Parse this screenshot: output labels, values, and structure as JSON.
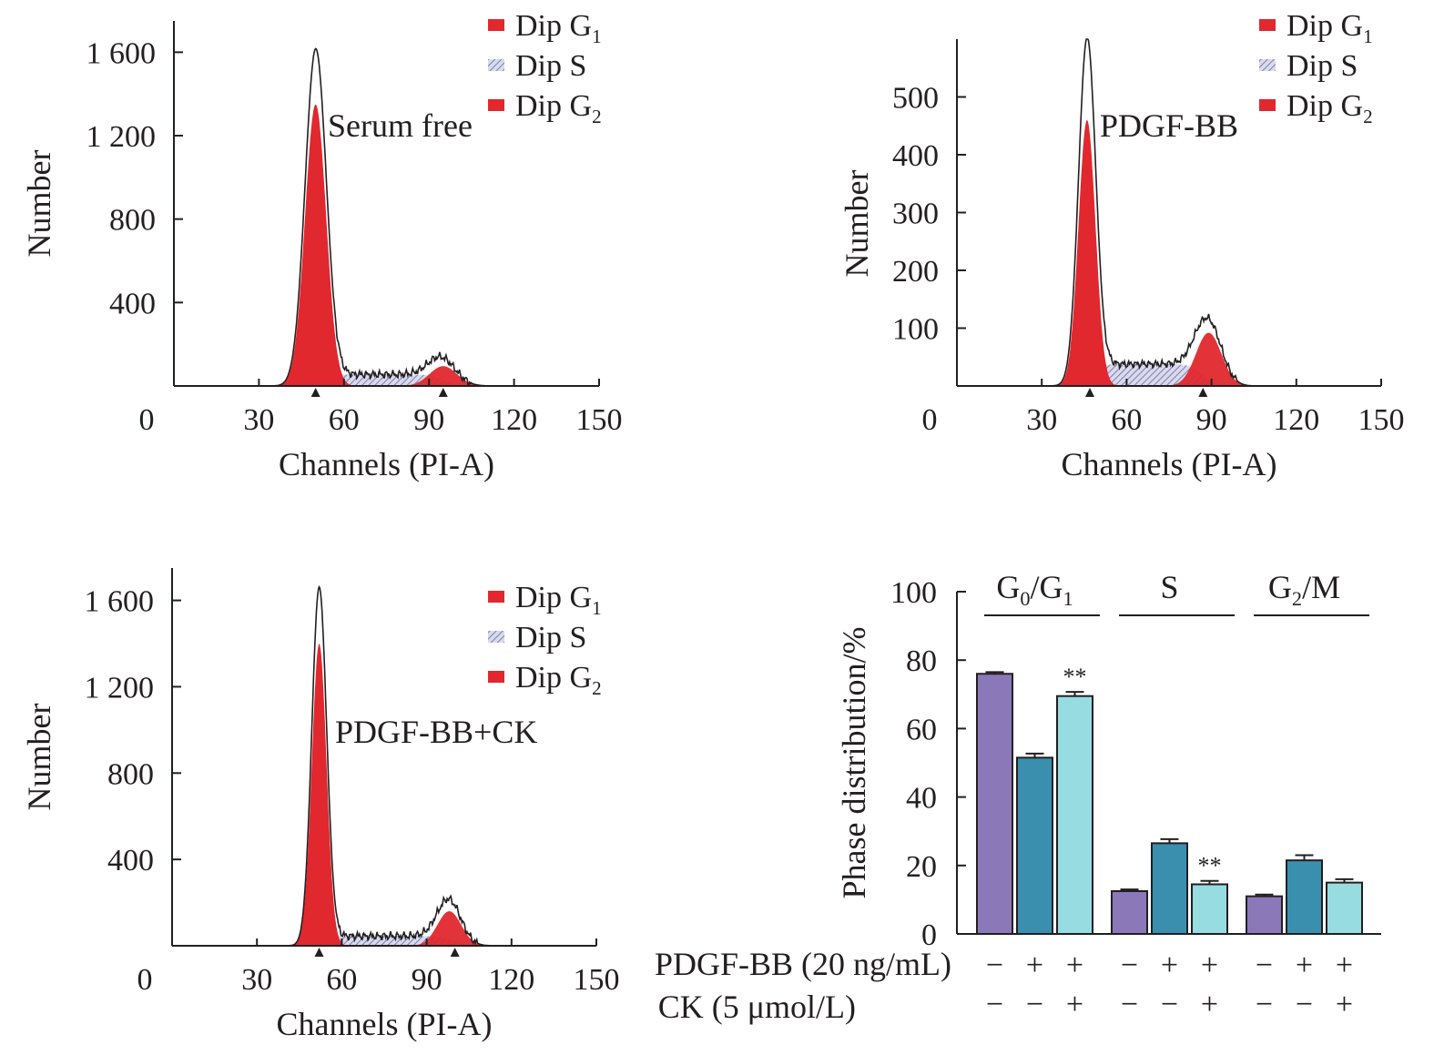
{
  "chart_data": [
    {
      "type": "histogram",
      "annotation": "Serum free",
      "xlabel": "Channels (PI-A)",
      "ylabel": "Number",
      "xticks": [
        "0",
        "30",
        "60",
        "90",
        "120",
        "150"
      ],
      "yticks": [
        "400",
        "800",
        "1 200",
        "1 600"
      ],
      "xlim": [
        0,
        150
      ],
      "ylim": [
        0,
        1750
      ],
      "legend": [
        {
          "label": "Dip G",
          "sub": "1",
          "color": "#e0282e",
          "pattern": false
        },
        {
          "label": "Dip S",
          "sub": "",
          "color": "#9b9cc4",
          "pattern": true
        },
        {
          "label": "Dip G",
          "sub": "2",
          "color": "#e0282e",
          "pattern": false
        }
      ],
      "g1": {
        "mean": 50,
        "sd": 3.7,
        "height": 1350
      },
      "s": {
        "from": 50,
        "to": 95,
        "level": 55
      },
      "g2": {
        "mean": 95,
        "sd": 4.8,
        "height": 95
      },
      "envelope_peak": 1590,
      "peak_markers": [
        50,
        95
      ]
    },
    {
      "type": "histogram",
      "annotation": "PDGF-BB",
      "xlabel": "Channels (PI-A)",
      "ylabel": "Number",
      "xticks": [
        "0",
        "30",
        "60",
        "90",
        "120",
        "150"
      ],
      "yticks": [
        "100",
        "200",
        "300",
        "400",
        "500"
      ],
      "xlim": [
        0,
        150
      ],
      "ylim": [
        0,
        600
      ],
      "legend": [
        {
          "label": "Dip G",
          "sub": "1",
          "color": "#e0282e",
          "pattern": false
        },
        {
          "label": "Dip S",
          "sub": "",
          "color": "#9b9cc4",
          "pattern": true
        },
        {
          "label": "Dip G",
          "sub": "2",
          "color": "#e0282e",
          "pattern": false
        }
      ],
      "g1": {
        "mean": 46,
        "sd": 3.0,
        "height": 460
      },
      "s": {
        "from": 46,
        "to": 87,
        "level": 38
      },
      "g2": {
        "mean": 89,
        "sd": 4.5,
        "height": 92
      },
      "envelope_peak": 585,
      "peak_markers": [
        47,
        87
      ]
    },
    {
      "type": "histogram",
      "annotation": "PDGF-BB+CK",
      "xlabel": "Channels (PI-A)",
      "ylabel": "Number",
      "xticks": [
        "0",
        "30",
        "60",
        "90",
        "120",
        "150"
      ],
      "yticks": [
        "400",
        "800",
        "1 200",
        "1 600"
      ],
      "xlim": [
        0,
        150
      ],
      "ylim": [
        0,
        1750
      ],
      "legend": [
        {
          "label": "Dip G",
          "sub": "1",
          "color": "#e0282e",
          "pattern": false
        },
        {
          "label": "Dip S",
          "sub": "",
          "color": "#9b9cc4",
          "pattern": true
        },
        {
          "label": "Dip G",
          "sub": "2",
          "color": "#e0282e",
          "pattern": false
        }
      ],
      "g1": {
        "mean": 52,
        "sd": 2.6,
        "height": 1400
      },
      "s": {
        "from": 52,
        "to": 100,
        "level": 45
      },
      "g2": {
        "mean": 98,
        "sd": 4.2,
        "height": 160
      },
      "envelope_peak": 1640,
      "peak_markers": [
        52,
        100
      ]
    },
    {
      "type": "bar",
      "ylabel": "Phase distribution/%",
      "ylim": [
        0,
        100
      ],
      "yticks": [
        "0",
        "20",
        "40",
        "60",
        "80",
        "100"
      ],
      "groups": [
        {
          "label": "G",
          "sub0": "0",
          "mid": "/G",
          "sub1": "1",
          "tail": ""
        },
        {
          "label": "S",
          "sub0": "",
          "mid": "",
          "sub1": "",
          "tail": ""
        },
        {
          "label": "G",
          "sub0": "2",
          "mid": "/M",
          "sub1": "",
          "tail": ""
        }
      ],
      "series": [
        {
          "name": "PDGF-BB − / CK −",
          "color": "#8b78b9",
          "values": [
            76,
            12.5,
            11
          ],
          "errors": [
            0.5,
            0.5,
            0.5
          ]
        },
        {
          "name": "PDGF-BB + / CK −",
          "color": "#3a8fae",
          "values": [
            51.5,
            26.5,
            21.5
          ],
          "errors": [
            1.2,
            1.2,
            1.5
          ]
        },
        {
          "name": "PDGF-BB + / CK +",
          "color": "#96dce0",
          "values": [
            69.5,
            14.5,
            15
          ],
          "errors": [
            1.2,
            1.0,
            1.0
          ]
        }
      ],
      "significance": [
        {
          "group": 0,
          "series": 2,
          "label": "**"
        },
        {
          "group": 1,
          "series": 2,
          "label": "**"
        }
      ],
      "row_labels": [
        "PDGF-BB (20 ng/mL)",
        "CK (5 μmol/L)"
      ],
      "pdgf_signs": [
        "−",
        "+",
        "+"
      ],
      "ck_signs": [
        "−",
        "−",
        "+"
      ]
    }
  ]
}
